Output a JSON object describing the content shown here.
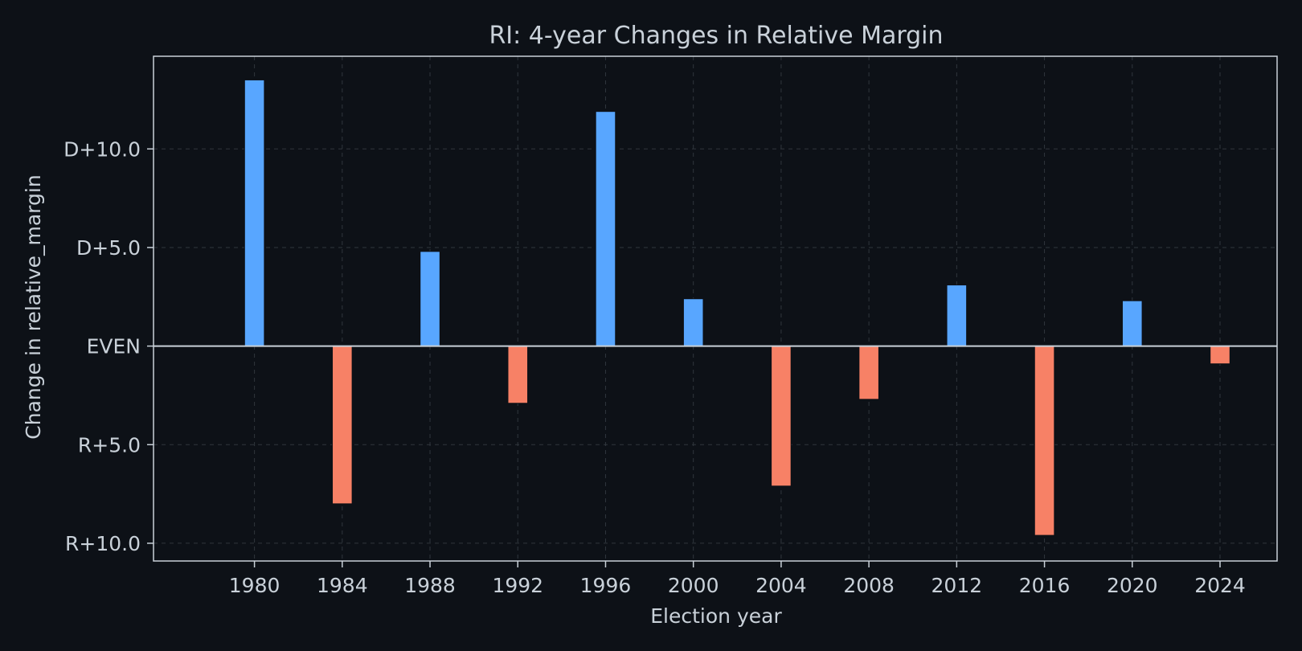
{
  "chart_data": {
    "type": "bar",
    "title": "RI: 4-year Changes in Relative Margin",
    "xlabel": "Election year",
    "ylabel": "Change in relative_margin",
    "x": [
      1980,
      1984,
      1988,
      1992,
      1996,
      2000,
      2004,
      2008,
      2012,
      2016,
      2020,
      2024
    ],
    "values": [
      13.5,
      -8.0,
      4.8,
      -2.9,
      11.9,
      2.4,
      -7.1,
      -2.7,
      3.1,
      -9.6,
      2.3,
      -0.9
    ],
    "ylim": [
      -10.9,
      14.7
    ],
    "yticks": [
      10,
      5,
      0,
      -5,
      -10
    ],
    "ytick_labels": [
      "D+10.0",
      "D+5.0",
      "EVEN",
      "R+5.0",
      "R+10.0"
    ],
    "xtick_labels": [
      "1980",
      "1984",
      "1988",
      "1992",
      "1996",
      "2000",
      "2004",
      "2008",
      "2012",
      "2016",
      "2020",
      "2024"
    ],
    "xlim": [
      1975.4,
      2026.6
    ],
    "grid": true,
    "colors": {
      "positive": "#58a6ff",
      "negative": "#f78166",
      "background": "#0d1117",
      "axis": "#c9d1d9",
      "grid": "#30363d"
    }
  }
}
